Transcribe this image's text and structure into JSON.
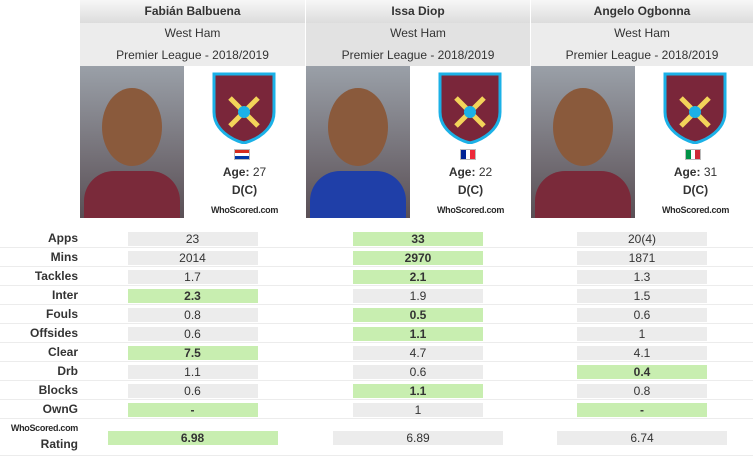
{
  "labels": {
    "age": "Age:",
    "logo": "WhoScored.com"
  },
  "players": [
    {
      "name": "Fabián Balbuena",
      "team": "West Ham",
      "league": "Premier League - 2018/2019",
      "age": 27,
      "position": "D(C)"
    },
    {
      "name": "Issa Diop",
      "team": "West Ham",
      "league": "Premier League - 2018/2019",
      "age": 22,
      "position": "D(C)"
    },
    {
      "name": "Angelo Ogbonna",
      "team": "West Ham",
      "league": "Premier League - 2018/2019",
      "age": 31,
      "position": "D(C)"
    }
  ],
  "rows": [
    {
      "label": "Apps",
      "values": [
        23,
        33,
        "20(4)"
      ],
      "best": [
        1
      ]
    },
    {
      "label": "Mins",
      "values": [
        2014,
        2970,
        1871
      ],
      "best": [
        1
      ]
    },
    {
      "label": "Tackles",
      "values": [
        1.7,
        2.1,
        1.3
      ],
      "best": [
        1
      ]
    },
    {
      "label": "Inter",
      "values": [
        2.3,
        1.9,
        1.5
      ],
      "best": [
        0
      ]
    },
    {
      "label": "Fouls",
      "values": [
        0.8,
        0.5,
        0.6
      ],
      "best": [
        1
      ]
    },
    {
      "label": "Offsides",
      "values": [
        0.6,
        1.1,
        1
      ],
      "best": [
        1
      ]
    },
    {
      "label": "Clear",
      "values": [
        7.5,
        4.7,
        4.1
      ],
      "best": [
        0
      ]
    },
    {
      "label": "Drb",
      "values": [
        1.1,
        0.6,
        0.4
      ],
      "best": [
        2
      ]
    },
    {
      "label": "Blocks",
      "values": [
        0.6,
        1.1,
        0.8
      ],
      "best": [
        1
      ]
    },
    {
      "label": "OwnG",
      "values": [
        "-",
        1,
        "-"
      ],
      "best": [
        0,
        2
      ]
    },
    {
      "label": "Rating",
      "values": [
        6.98,
        6.89,
        6.74
      ],
      "best": [
        0
      ],
      "logo": true
    }
  ]
}
